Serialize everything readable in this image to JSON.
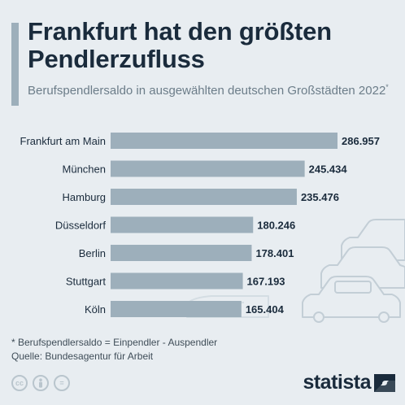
{
  "header": {
    "title": "Frankfurt hat den größten Pendlerzufluss",
    "subtitle": "Berufspendlersaldo in ausgewählten deutschen Großstädten 2022",
    "subtitle_marker": "*"
  },
  "chart_data": {
    "type": "bar",
    "orientation": "horizontal",
    "categories": [
      "Frankfurt am Main",
      "München",
      "Hamburg",
      "Düsseldorf",
      "Berlin",
      "Stuttgart",
      "Köln"
    ],
    "values": [
      286957,
      245434,
      235476,
      180246,
      178401,
      167193,
      165404
    ],
    "value_labels": [
      "286.957",
      "245.434",
      "235.476",
      "180.246",
      "178.401",
      "167.193",
      "165.404"
    ],
    "bar_color": "#9dafbb",
    "grid": false
  },
  "footnote": {
    "definition": "* Berufspendlersaldo = Einpendler - Auspendler",
    "source": "Quelle: Bundesagentur für Arbeit"
  },
  "license_icons": [
    "cc",
    "by",
    "="
  ],
  "brand": {
    "name": "statista"
  },
  "colors": {
    "background": "#e8edf1",
    "title": "#1a2b3c",
    "subtitle": "#6c7d89",
    "bar": "#9dafbb"
  }
}
